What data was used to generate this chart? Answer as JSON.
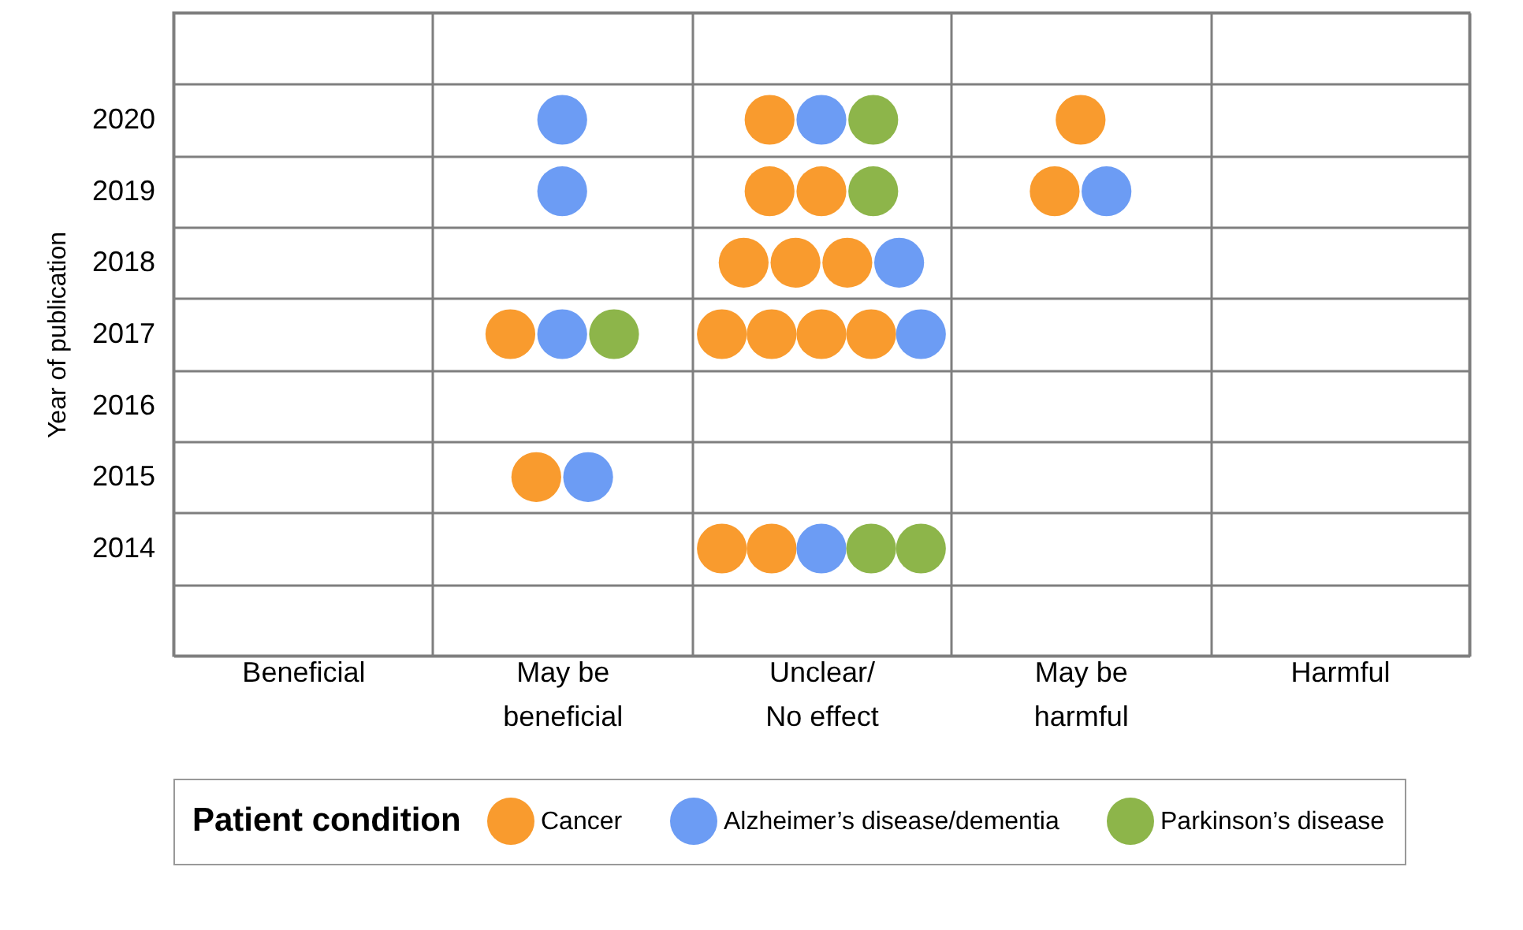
{
  "chart_data": {
    "type": "scatter",
    "ylabel": "Year of publication",
    "legend_title": "Patient condition",
    "legend": "bottom",
    "grid": true,
    "marker": "circle",
    "categories": [
      "Beneficial",
      "May be\nbeneficial",
      "Unclear/\nNo effect",
      "May be\nharmful",
      "Harmful"
    ],
    "ylim": [
      2012.5,
      2021.5
    ],
    "yticks": [
      {
        "value": 2012.5,
        "label": null
      },
      {
        "value": 2013.5,
        "label": null
      },
      2014,
      {
        "value": 2014.5,
        "label": null
      },
      2015,
      {
        "value": 2015.5,
        "label": null
      },
      2016,
      {
        "value": 2016.5,
        "label": null
      },
      2017,
      {
        "value": 2017.5,
        "label": null
      },
      2018,
      {
        "value": 2018.5,
        "label": null
      },
      2019,
      {
        "value": 2019.5,
        "label": null
      },
      2020,
      {
        "value": 2020.5,
        "label": null
      },
      {
        "value": 2021.5,
        "label": null
      }
    ],
    "series": [
      {
        "name": "Cancer",
        "color": "#f99b2e",
        "x": [
          "Unclear/\nNo effect",
          "May be\nharmful",
          "Unclear/\nNo effect",
          "Unclear/\nNo effect",
          "May be\nharmful",
          "Unclear/\nNo effect",
          "Unclear/\nNo effect",
          "Unclear/\nNo effect",
          "May be\nbeneficial",
          "Unclear/\nNo effect",
          "Unclear/\nNo effect",
          "Unclear/\nNo effect",
          "Unclear/\nNo effect",
          "May be\nbeneficial",
          "Unclear/\nNo effect",
          "Unclear/\nNo effect"
        ],
        "values": [
          2020,
          2020,
          2019,
          2019,
          2019,
          2018,
          2018,
          2018,
          2017,
          2017,
          2017,
          2017,
          2017,
          2015,
          2014,
          2014
        ]
      },
      {
        "name": "Alzheimer’s disease/dementia",
        "color": "#6c9cf4",
        "x": [
          "May be\nbeneficial",
          "Unclear/\nNo effect",
          "May be\nbeneficial",
          "May be\nharmful",
          "Unclear/\nNo effect",
          "May be\nbeneficial",
          "Unclear/\nNo effect",
          "May be\nbeneficial",
          "Unclear/\nNo effect"
        ],
        "values": [
          2020,
          2020,
          2019,
          2019,
          2018,
          2017,
          2017,
          2015,
          2014
        ]
      },
      {
        "name": "Parkinson’s disease",
        "color": "#8db54a",
        "x": [
          "Unclear/\nNo effect",
          "Unclear/\nNo effect",
          "May be\nbeneficial",
          "Unclear/\nNo effect",
          "Unclear/\nNo effect"
        ],
        "values": [
          2020,
          2019,
          2017,
          2014,
          2014
        ]
      }
    ]
  }
}
